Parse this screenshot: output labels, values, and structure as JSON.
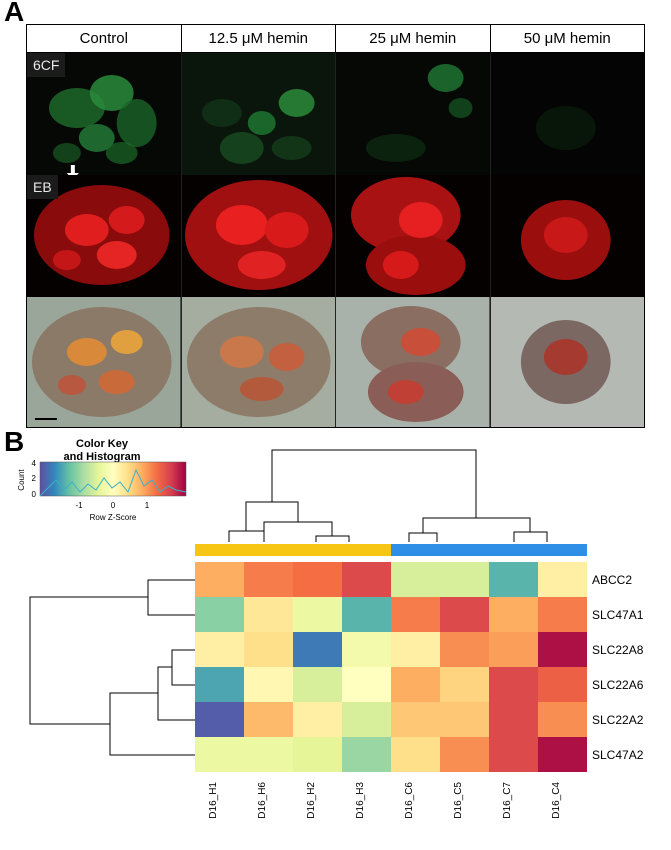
{
  "panel_a": {
    "letter": "A",
    "column_headers": [
      "Control",
      "12.5 μM hemin",
      "25 μM hemin",
      "50 μM hemin"
    ],
    "row_labels": [
      "6CF",
      "EB",
      ""
    ],
    "colors": {
      "green_channel": "#2fb34a",
      "red_channel": "#e01e1e",
      "background": "#050505"
    }
  },
  "panel_b": {
    "letter": "B",
    "color_key": {
      "title_line1": "Color Key",
      "title_line2": "and Histogram",
      "y_axis_label": "Count",
      "y_ticks": [
        "0",
        "2",
        "4"
      ],
      "x_ticks": [
        "-1",
        "0",
        "1"
      ],
      "x_axis_label": "Row Z-Score"
    },
    "sample_group_colors": [
      "#f7c614",
      "#2f8ee6"
    ]
  },
  "chart_data": {
    "type": "heatmap",
    "rows": [
      "ABCC2",
      "SLC47A1",
      "SLC22A8",
      "SLC22A6",
      "SLC22A2",
      "SLC47A2"
    ],
    "columns": [
      "D16_H1",
      "D16_H6",
      "D16_H2",
      "D16_H3",
      "D16_C6",
      "D16_C5",
      "D16_C7",
      "D16_C4"
    ],
    "column_groups": [
      0,
      0,
      0,
      0,
      1,
      1,
      1,
      1
    ],
    "values": [
      [
        0.8,
        1.1,
        1.2,
        1.5,
        -0.5,
        -0.5,
        -1.3,
        0.2
      ],
      [
        -1.0,
        0.3,
        -0.3,
        -1.3,
        1.1,
        1.5,
        0.8,
        1.1
      ],
      [
        0.2,
        0.4,
        -1.7,
        -0.2,
        0.2,
        1.0,
        0.9,
        1.9
      ],
      [
        -1.4,
        0.1,
        -0.5,
        0.0,
        0.8,
        0.5,
        1.5,
        1.3
      ],
      [
        -1.9,
        0.7,
        0.2,
        -0.5,
        0.6,
        0.6,
        1.5,
        1.0
      ],
      [
        -0.3,
        -0.3,
        -0.4,
        -0.9,
        0.4,
        1.0,
        1.5,
        1.9
      ]
    ],
    "colorscale": "Spectral",
    "zlim": [
      -2,
      2
    ]
  }
}
